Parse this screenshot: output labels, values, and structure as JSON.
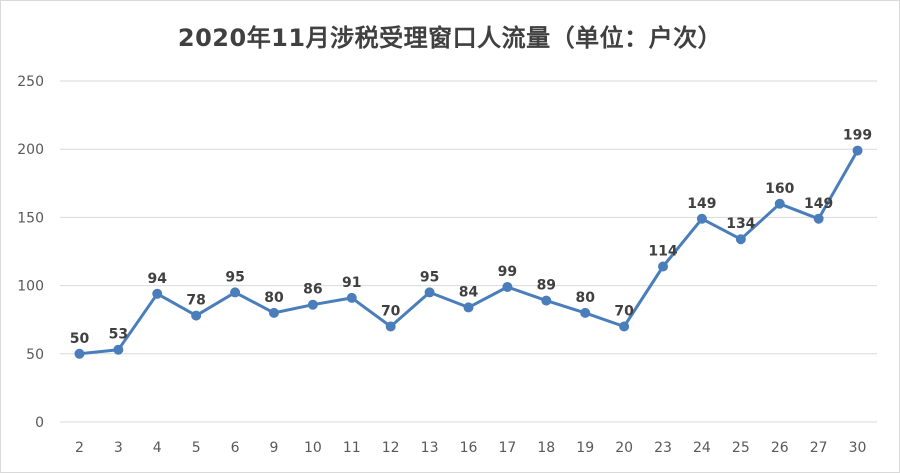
{
  "chart_data": {
    "type": "line",
    "title": "2020年11月涉税受理窗口人流量（单位：户次）",
    "xlabel": "",
    "ylabel": "",
    "categories": [
      "2",
      "3",
      "4",
      "5",
      "6",
      "9",
      "10",
      "11",
      "12",
      "13",
      "16",
      "17",
      "18",
      "19",
      "20",
      "23",
      "24",
      "25",
      "26",
      "27",
      "30"
    ],
    "series": [
      {
        "values": [
          50,
          53,
          94,
          78,
          95,
          80,
          86,
          91,
          70,
          95,
          84,
          99,
          89,
          80,
          70,
          114,
          149,
          134,
          160,
          149,
          199
        ]
      }
    ],
    "ylim": [
      0,
      250
    ],
    "yticks": [
      "0",
      "50",
      "100",
      "150",
      "200",
      "250"
    ],
    "grid": true,
    "legend": "none",
    "data_labels": true,
    "colors": {
      "line": "#4a7ebb",
      "marker": "#4a7ebb",
      "grid": "#d9d9d9"
    }
  }
}
